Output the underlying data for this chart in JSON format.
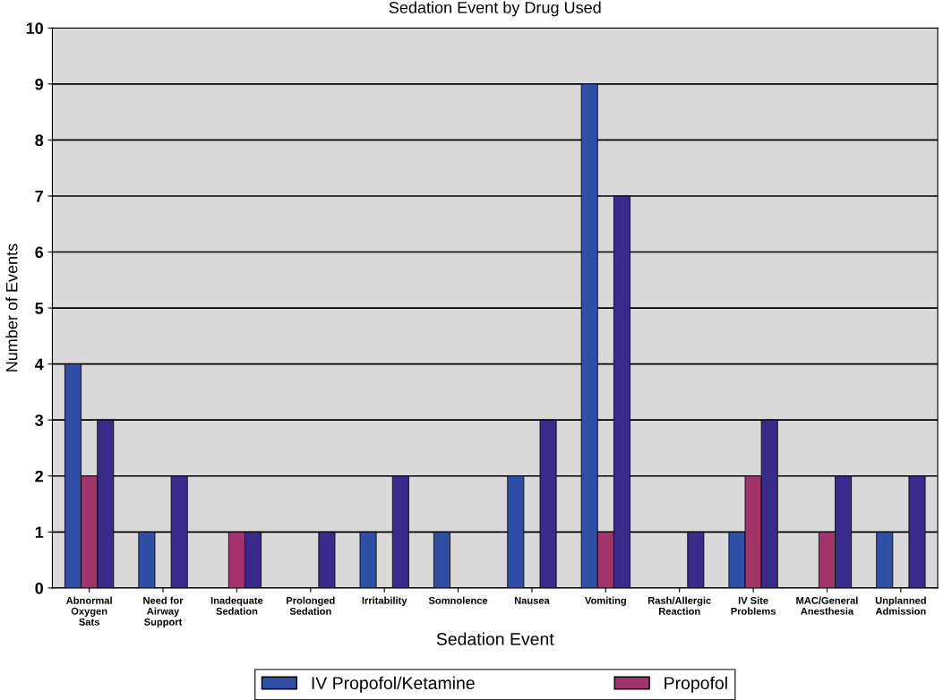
{
  "chart_data": {
    "type": "bar",
    "title": "Sedation Event by Drug Used",
    "xlabel": "Sedation Event",
    "ylabel": "Number of Events",
    "categories": [
      "Abnormal\nOxygen\nSats",
      "Need for\nAirway\nSupport",
      "Inadequate\nSedation",
      "Prolonged\nSedation",
      "Irritability",
      "Somnolence",
      "Nausea",
      "Vomiting",
      "Rash/Allergic\nReaction",
      "IV Site\nProblems",
      "MAC/General\nAnesthesia",
      "Unplanned\nAdmission"
    ],
    "series": [
      {
        "name": "IV Propofol/Ketamine",
        "color": "#2f4fa6",
        "values": [
          4,
          1,
          0,
          0,
          1,
          1,
          2,
          9,
          0,
          1,
          0,
          1
        ]
      },
      {
        "name": "Propofol",
        "color": "#a3336b",
        "values": [
          2,
          0,
          1,
          0,
          0,
          0,
          0,
          1,
          0,
          2,
          1,
          0
        ]
      },
      {
        "color": "#3a2a8c",
        "values": [
          3,
          2,
          1,
          1,
          2,
          0,
          3,
          7,
          1,
          3,
          2,
          2
        ]
      }
    ],
    "ylim": [
      0,
      10
    ],
    "yticks": [
      0,
      1,
      2,
      3,
      4,
      5,
      6,
      7,
      8,
      9,
      10
    ],
    "grid": "y",
    "legend": "bottom"
  }
}
